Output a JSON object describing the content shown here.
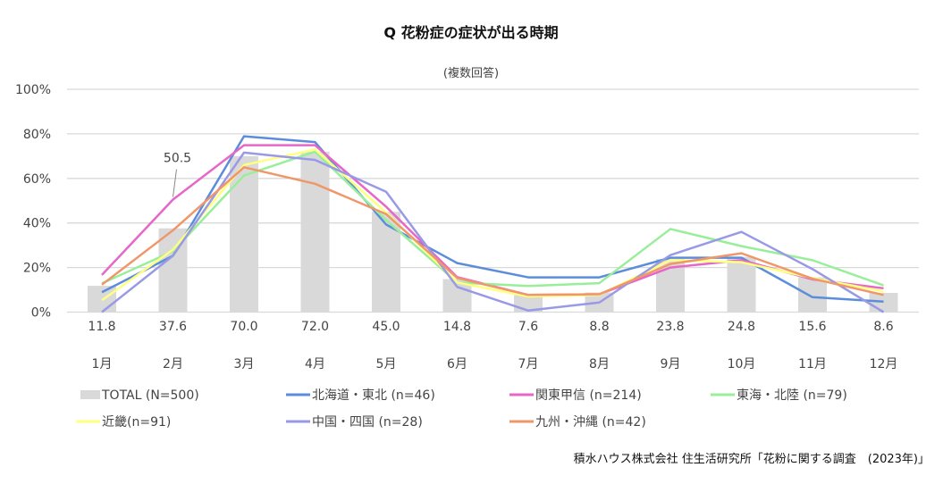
{
  "chart_data": {
    "type": "bar+line",
    "title": "Q 花粉症の症状が出る時期",
    "subtitle": "(複数回答)",
    "source": "積水ハウス株式会社 住生活研究所「花粉に関する調査　(2023年)」",
    "categories": [
      "1月",
      "2月",
      "3月",
      "4月",
      "5月",
      "6月",
      "7月",
      "8月",
      "9月",
      "10月",
      "11月",
      "12月"
    ],
    "ylim": [
      0,
      100
    ],
    "yticks": [
      "0%",
      "20%",
      "40%",
      "60%",
      "80%",
      "100%"
    ],
    "grid": true,
    "legend_position": "bottom",
    "bar_series": {
      "name": "TOTAL (N=500)",
      "color": "#d9d9d9",
      "values": [
        11.8,
        37.6,
        70.0,
        72.0,
        45.0,
        14.8,
        7.6,
        8.8,
        23.8,
        24.8,
        15.6,
        8.6
      ],
      "labels": [
        "11.8",
        "37.6",
        "70.0",
        "72.0",
        "45.0",
        "14.8",
        "7.6",
        "8.8",
        "23.8",
        "24.8",
        "15.6",
        "8.6"
      ]
    },
    "series": [
      {
        "name": "北海道・東北 (n=46)",
        "color": "#5b8ddb",
        "values": [
          8.9,
          25.3,
          78.9,
          76.3,
          39.3,
          22,
          15.6,
          15.6,
          24.4,
          24.4,
          6.7,
          4.7
        ]
      },
      {
        "name": "関東甲信 (n=214)",
        "color": "#e667c8",
        "values": [
          16.7,
          50.5,
          74.9,
          74.9,
          47.3,
          15.7,
          7.7,
          8,
          20,
          23.3,
          14.7,
          10.7
        ]
      },
      {
        "name": "東海・北陸 (n=79)",
        "color": "#99ee99",
        "values": [
          12.9,
          27.3,
          61.3,
          72,
          41.3,
          13.3,
          11.7,
          13,
          37.3,
          29.6,
          23.3,
          12
        ]
      },
      {
        "name": "近畿(n=91)",
        "color": "#ffff80",
        "values": [
          5.3,
          28,
          66,
          73,
          44.7,
          13.3,
          7,
          7.7,
          23.3,
          22.4,
          15.3,
          9.3
        ]
      },
      {
        "name": "中国・四国 (n=28)",
        "color": "#9999e6",
        "values": [
          0,
          25.3,
          71.6,
          68.3,
          54,
          11.3,
          0.7,
          4.3,
          25.6,
          36,
          19.3,
          0
        ]
      },
      {
        "name": "九州・沖縄 (n=42)",
        "color": "#f0976a",
        "values": [
          12.3,
          36.7,
          65,
          57.6,
          44,
          15.3,
          7.7,
          8,
          21.6,
          26.4,
          15,
          7.7
        ]
      }
    ],
    "annotations": [
      {
        "series": "関東甲信 (n=214)",
        "category": "2月",
        "text": "50.5"
      }
    ]
  }
}
